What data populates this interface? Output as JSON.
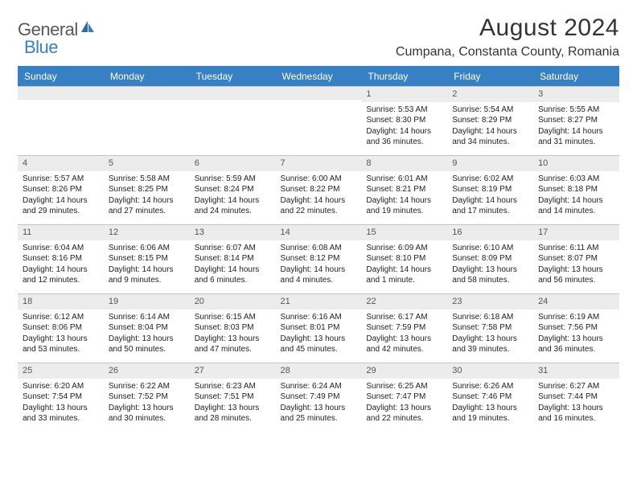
{
  "logo": {
    "word1": "General",
    "word2": "Blue"
  },
  "title": "August 2024",
  "location": "Cumpana, Constanta County, Romania",
  "dayHeaders": [
    "Sunday",
    "Monday",
    "Tuesday",
    "Wednesday",
    "Thursday",
    "Friday",
    "Saturday"
  ],
  "colors": {
    "headerBg": "#3780c3",
    "headerText": "#ffffff",
    "dayBandBg": "#ececec",
    "rowBorder": "#b9c7d4",
    "textDark": "#333437",
    "logoGray": "#555a5f",
    "logoBlue": "#3780c3"
  },
  "weeks": [
    [
      {
        "blank": true
      },
      {
        "blank": true
      },
      {
        "blank": true
      },
      {
        "blank": true
      },
      {
        "num": "1",
        "sunrise": "5:53 AM",
        "sunset": "8:30 PM",
        "daylight": "14 hours and 36 minutes."
      },
      {
        "num": "2",
        "sunrise": "5:54 AM",
        "sunset": "8:29 PM",
        "daylight": "14 hours and 34 minutes."
      },
      {
        "num": "3",
        "sunrise": "5:55 AM",
        "sunset": "8:27 PM",
        "daylight": "14 hours and 31 minutes."
      }
    ],
    [
      {
        "num": "4",
        "sunrise": "5:57 AM",
        "sunset": "8:26 PM",
        "daylight": "14 hours and 29 minutes."
      },
      {
        "num": "5",
        "sunrise": "5:58 AM",
        "sunset": "8:25 PM",
        "daylight": "14 hours and 27 minutes."
      },
      {
        "num": "6",
        "sunrise": "5:59 AM",
        "sunset": "8:24 PM",
        "daylight": "14 hours and 24 minutes."
      },
      {
        "num": "7",
        "sunrise": "6:00 AM",
        "sunset": "8:22 PM",
        "daylight": "14 hours and 22 minutes."
      },
      {
        "num": "8",
        "sunrise": "6:01 AM",
        "sunset": "8:21 PM",
        "daylight": "14 hours and 19 minutes."
      },
      {
        "num": "9",
        "sunrise": "6:02 AM",
        "sunset": "8:19 PM",
        "daylight": "14 hours and 17 minutes."
      },
      {
        "num": "10",
        "sunrise": "6:03 AM",
        "sunset": "8:18 PM",
        "daylight": "14 hours and 14 minutes."
      }
    ],
    [
      {
        "num": "11",
        "sunrise": "6:04 AM",
        "sunset": "8:16 PM",
        "daylight": "14 hours and 12 minutes."
      },
      {
        "num": "12",
        "sunrise": "6:06 AM",
        "sunset": "8:15 PM",
        "daylight": "14 hours and 9 minutes."
      },
      {
        "num": "13",
        "sunrise": "6:07 AM",
        "sunset": "8:14 PM",
        "daylight": "14 hours and 6 minutes."
      },
      {
        "num": "14",
        "sunrise": "6:08 AM",
        "sunset": "8:12 PM",
        "daylight": "14 hours and 4 minutes."
      },
      {
        "num": "15",
        "sunrise": "6:09 AM",
        "sunset": "8:10 PM",
        "daylight": "14 hours and 1 minute."
      },
      {
        "num": "16",
        "sunrise": "6:10 AM",
        "sunset": "8:09 PM",
        "daylight": "13 hours and 58 minutes."
      },
      {
        "num": "17",
        "sunrise": "6:11 AM",
        "sunset": "8:07 PM",
        "daylight": "13 hours and 56 minutes."
      }
    ],
    [
      {
        "num": "18",
        "sunrise": "6:12 AM",
        "sunset": "8:06 PM",
        "daylight": "13 hours and 53 minutes."
      },
      {
        "num": "19",
        "sunrise": "6:14 AM",
        "sunset": "8:04 PM",
        "daylight": "13 hours and 50 minutes."
      },
      {
        "num": "20",
        "sunrise": "6:15 AM",
        "sunset": "8:03 PM",
        "daylight": "13 hours and 47 minutes."
      },
      {
        "num": "21",
        "sunrise": "6:16 AM",
        "sunset": "8:01 PM",
        "daylight": "13 hours and 45 minutes."
      },
      {
        "num": "22",
        "sunrise": "6:17 AM",
        "sunset": "7:59 PM",
        "daylight": "13 hours and 42 minutes."
      },
      {
        "num": "23",
        "sunrise": "6:18 AM",
        "sunset": "7:58 PM",
        "daylight": "13 hours and 39 minutes."
      },
      {
        "num": "24",
        "sunrise": "6:19 AM",
        "sunset": "7:56 PM",
        "daylight": "13 hours and 36 minutes."
      }
    ],
    [
      {
        "num": "25",
        "sunrise": "6:20 AM",
        "sunset": "7:54 PM",
        "daylight": "13 hours and 33 minutes."
      },
      {
        "num": "26",
        "sunrise": "6:22 AM",
        "sunset": "7:52 PM",
        "daylight": "13 hours and 30 minutes."
      },
      {
        "num": "27",
        "sunrise": "6:23 AM",
        "sunset": "7:51 PM",
        "daylight": "13 hours and 28 minutes."
      },
      {
        "num": "28",
        "sunrise": "6:24 AM",
        "sunset": "7:49 PM",
        "daylight": "13 hours and 25 minutes."
      },
      {
        "num": "29",
        "sunrise": "6:25 AM",
        "sunset": "7:47 PM",
        "daylight": "13 hours and 22 minutes."
      },
      {
        "num": "30",
        "sunrise": "6:26 AM",
        "sunset": "7:46 PM",
        "daylight": "13 hours and 19 minutes."
      },
      {
        "num": "31",
        "sunrise": "6:27 AM",
        "sunset": "7:44 PM",
        "daylight": "13 hours and 16 minutes."
      }
    ]
  ],
  "labels": {
    "sunrisePrefix": "Sunrise: ",
    "sunsetPrefix": "Sunset: ",
    "daylightPrefix": "Daylight: "
  }
}
